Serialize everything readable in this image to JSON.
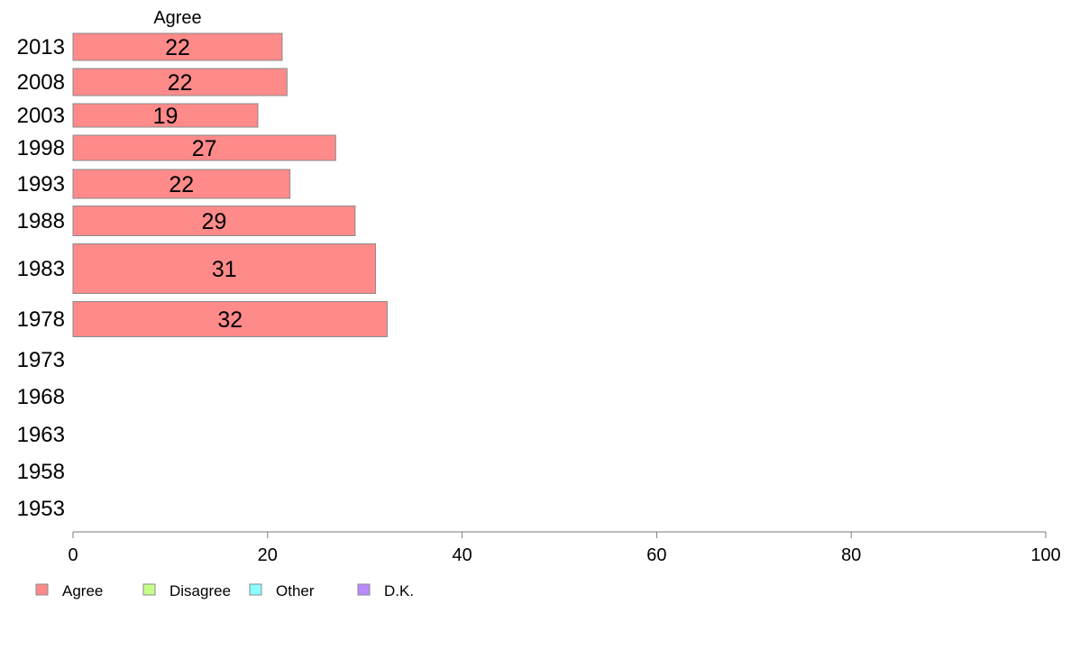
{
  "chart_data": {
    "type": "bar",
    "orientation": "horizontal",
    "column_header": "Agree",
    "categories": [
      "2013",
      "2008",
      "2003",
      "1998",
      "1993",
      "1988",
      "1983",
      "1978",
      "1973",
      "1968",
      "1963",
      "1958",
      "1953"
    ],
    "series": [
      {
        "name": "Agree",
        "color": "#ff8a8a",
        "values": [
          21.5,
          22,
          19,
          27,
          22.3,
          29,
          31.1,
          32.3,
          null,
          null,
          null,
          null,
          null
        ]
      }
    ],
    "data_labels": [
      "22",
      "22",
      "19",
      "27",
      "22",
      "29",
      "31",
      "32",
      "",
      "",
      "",
      "",
      ""
    ],
    "xlim": [
      0,
      100
    ],
    "xticks": [
      0,
      20,
      40,
      60,
      80,
      100
    ],
    "grid": false,
    "legend": {
      "position": "bottom-left",
      "items": [
        {
          "label": "Agree",
          "color": "#ff8a8a"
        },
        {
          "label": "Disagree",
          "color": "#c6ff8a"
        },
        {
          "label": "Other",
          "color": "#8affff"
        },
        {
          "label": "D.K.",
          "color": "#b98aff"
        }
      ]
    }
  }
}
